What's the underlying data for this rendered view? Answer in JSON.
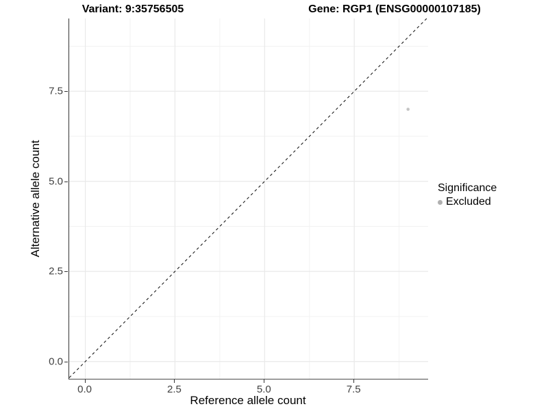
{
  "titles": {
    "variant": "Variant: 9:35756505",
    "gene": "Gene: RGP1 (ENSG00000107185)"
  },
  "chart_data": {
    "type": "scatter",
    "xlabel": "Reference allele count",
    "ylabel": "Alternative allele count",
    "xlim": [
      -0.45,
      9.56
    ],
    "ylim": [
      -0.48,
      9.52
    ],
    "x_ticks": [
      0.0,
      2.5,
      5.0,
      7.5
    ],
    "y_ticks": [
      0.0,
      2.5,
      5.0,
      7.5
    ],
    "x_tick_labels": [
      "0.0",
      "2.5",
      "5.0",
      "7.5"
    ],
    "y_tick_labels": [
      "0.0",
      "2.5",
      "5.0",
      "7.5"
    ],
    "minor_gridlines": [
      1.25,
      3.75,
      6.25,
      8.75
    ],
    "grid": true,
    "points": [
      {
        "x": 9,
        "y": 7,
        "series": "Excluded"
      }
    ],
    "reference_line": {
      "type": "identity y=x",
      "style": "dashed",
      "color": "#1a1a1a"
    },
    "legend": {
      "title": "Significance",
      "position": "right",
      "items": [
        {
          "label": "Excluded",
          "color": "#b0b0b0"
        }
      ]
    }
  },
  "colors": {
    "background": "#ffffff",
    "panel_background": "#ffffff",
    "grid_major": "#e9e9e9",
    "grid_minor": "#f2f2f2",
    "axis_line": "#333333",
    "tick_label": "#404040",
    "point_fill": "#c4c4c4"
  }
}
